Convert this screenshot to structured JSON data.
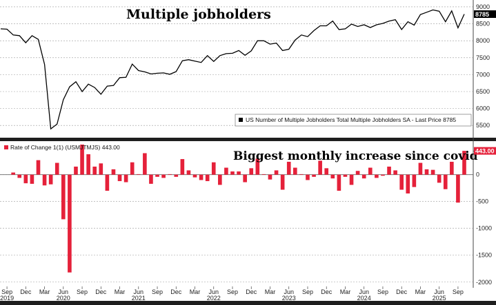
{
  "chart_data": [
    {
      "type": "line",
      "title": "Multiple jobholders",
      "legend": "US Number of Multiple Jobholders Total Multiple Jobholders SA - Last Price 8785",
      "last_value_label": "8785",
      "ylim": [
        5200,
        9100
      ],
      "yticks": [
        5500,
        6000,
        6500,
        7000,
        7500,
        8000,
        8500,
        9000
      ],
      "grid": true,
      "color": "#000000",
      "values": [
        8350,
        8340,
        8170,
        8150,
        7940,
        8150,
        8040,
        7300,
        5400,
        5540,
        6260,
        6640,
        6790,
        6500,
        6720,
        6620,
        6420,
        6660,
        6680,
        6910,
        6920,
        7310,
        7120,
        7080,
        7020,
        7040,
        7050,
        7010,
        7090,
        7410,
        7440,
        7400,
        7360,
        7560,
        7390,
        7560,
        7620,
        7630,
        7710,
        7570,
        7700,
        8000,
        8000,
        7900,
        7930,
        7710,
        7750,
        8020,
        8170,
        8120,
        8300,
        8440,
        8440,
        8580,
        8330,
        8350,
        8490,
        8420,
        8470,
        8390,
        8470,
        8510,
        8580,
        8620,
        8330,
        8560,
        8460,
        8770,
        8840,
        8910,
        8870,
        8560,
        8880,
        8380,
        8785
      ]
    },
    {
      "type": "bar",
      "title": "Biggest monthly increase since covid",
      "legend": "Rate of Change 1(1) (USMJTMJS) 443.00",
      "last_value_label": "443.00",
      "ylim": [
        -2080,
        560
      ],
      "yticks": [
        -2000,
        -1500,
        -1000,
        -500,
        0
      ],
      "grid": true,
      "color": "#e5213a",
      "values": [
        40,
        -60,
        -160,
        -170,
        270,
        -200,
        -180,
        220,
        -830,
        -1820,
        150,
        560,
        380,
        150,
        210,
        -300,
        100,
        -120,
        -140,
        230,
        10,
        400,
        -170,
        -40,
        -60,
        10,
        -40,
        290,
        80,
        -50,
        -100,
        -120,
        230,
        -190,
        130,
        60,
        60,
        -140,
        120,
        300,
        10,
        -90,
        80,
        -280,
        240,
        130,
        10,
        -100,
        -40,
        260,
        120,
        -70,
        -300,
        -40,
        -190,
        70,
        -70,
        130,
        -60,
        -20,
        150,
        80,
        -280,
        -350,
        -230,
        220,
        100,
        90,
        -150,
        -270,
        240,
        -520,
        443
      ]
    }
  ],
  "x_axis": {
    "month_labels": [
      "Sep",
      "Dec",
      "Mar",
      "Jun",
      "Sep",
      "Dec",
      "Mar",
      "Jun",
      "Sep",
      "Dec",
      "Mar",
      "Jun",
      "Sep",
      "Dec",
      "Mar",
      "Jun",
      "Sep",
      "Dec",
      "Mar",
      "Jun",
      "Sep",
      "Dec",
      "Mar",
      "Jun",
      "Sep"
    ],
    "year_labels": [
      "2019",
      "2020",
      "2021",
      "2022",
      "2023",
      "2024",
      "2025"
    ]
  }
}
